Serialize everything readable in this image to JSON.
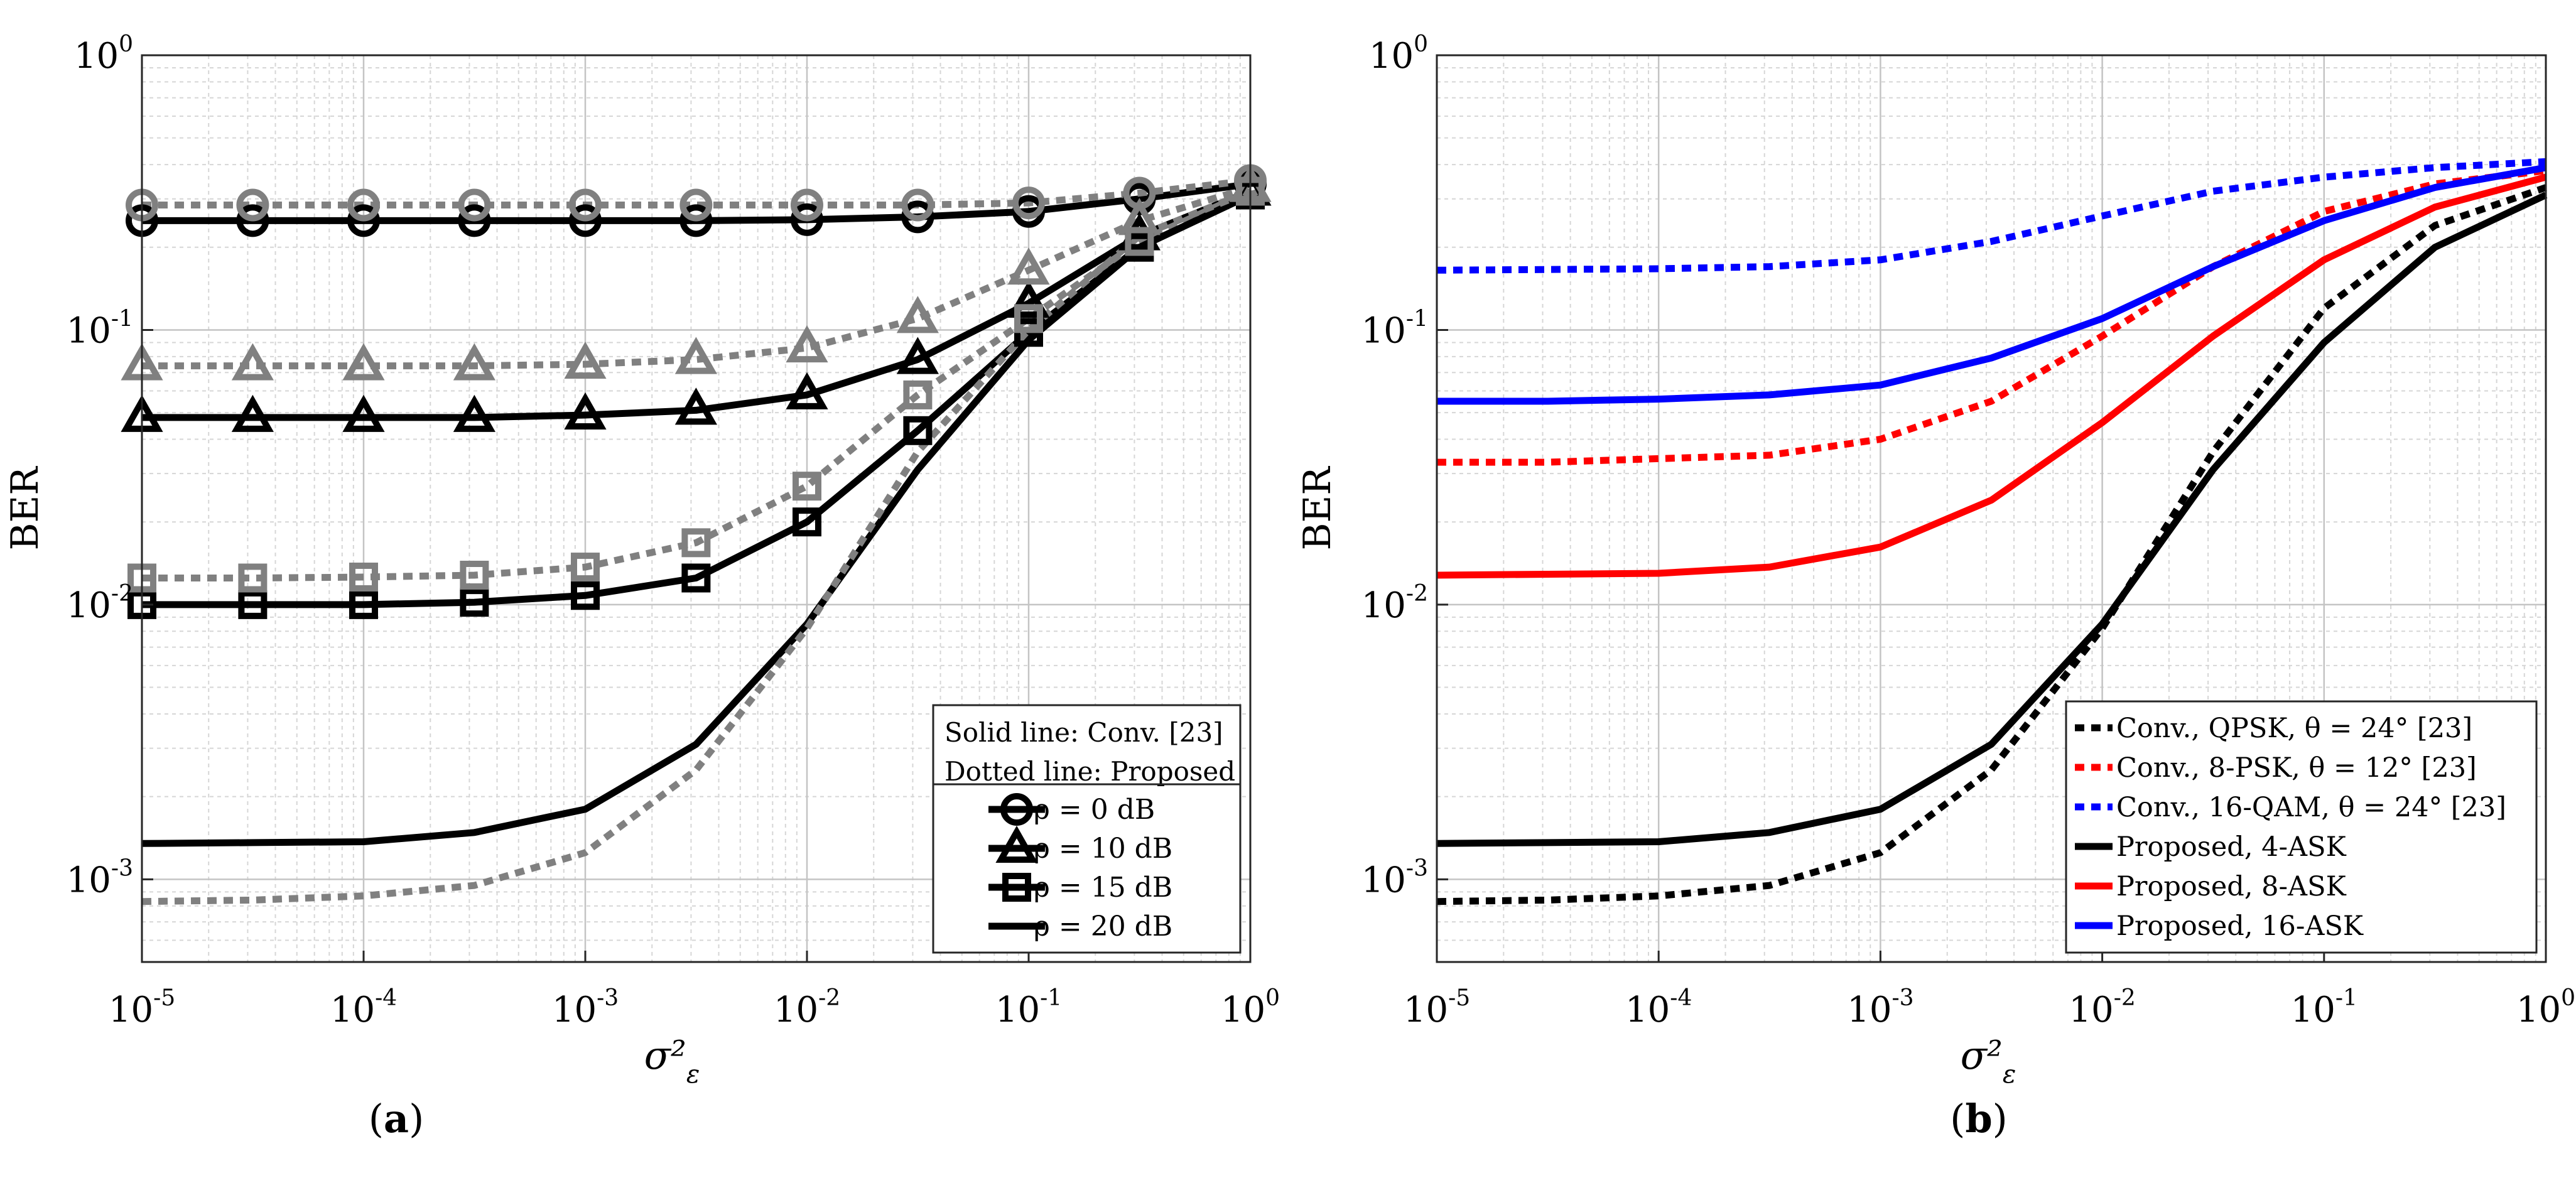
{
  "chart_data": [
    {
      "type": "line",
      "title": "",
      "caption": "a",
      "xlabel": "σ²ε",
      "ylabel": "BER",
      "xscale": "log",
      "yscale": "log",
      "xlim": [
        1e-05,
        1
      ],
      "ylim": [
        0.0005,
        1
      ],
      "grid": true,
      "legend_placement": "bottom-right",
      "x": [
        1e-05,
        3.16e-05,
        0.0001,
        0.000316,
        0.001,
        0.00316,
        0.01,
        0.0316,
        0.1,
        0.316,
        1
      ],
      "x_ticks": [
        {
          "base": "10",
          "exp": "-5",
          "value": 1e-05
        },
        {
          "base": "10",
          "exp": "-4",
          "value": 0.0001
        },
        {
          "base": "10",
          "exp": "-3",
          "value": 0.001
        },
        {
          "base": "10",
          "exp": "-2",
          "value": 0.01
        },
        {
          "base": "10",
          "exp": "-1",
          "value": 0.1
        },
        {
          "base": "10",
          "exp": "0",
          "value": 1
        }
      ],
      "y_ticks": [
        {
          "base": "10",
          "exp": "0",
          "value": 1
        },
        {
          "base": "10",
          "exp": "-1",
          "value": 0.1
        },
        {
          "base": "10",
          "exp": "-2",
          "value": 0.01
        },
        {
          "base": "10",
          "exp": "-3",
          "value": 0.001
        }
      ],
      "legend_header": [
        "Solid line: Conv. [23]",
        "Dotted line: Proposed"
      ],
      "legend": [
        {
          "label": "ρ = 0 dB",
          "marker": "circle"
        },
        {
          "label": "ρ = 10 dB",
          "marker": "triangle"
        },
        {
          "label": "ρ = 15 dB",
          "marker": "square"
        },
        {
          "label": "ρ = 20 dB",
          "marker": "none"
        }
      ],
      "series": [
        {
          "name": "Conv., ρ = 0 dB",
          "style": "solid",
          "color": "#000000",
          "marker": "circle",
          "values": [
            0.25,
            0.25,
            0.25,
            0.25,
            0.25,
            0.25,
            0.252,
            0.258,
            0.27,
            0.3,
            0.34
          ]
        },
        {
          "name": "Proposed, ρ = 0 dB",
          "style": "dotted",
          "color": "#808080",
          "marker": "circle",
          "values": [
            0.285,
            0.285,
            0.285,
            0.285,
            0.285,
            0.285,
            0.285,
            0.285,
            0.29,
            0.315,
            0.35
          ]
        },
        {
          "name": "Conv., ρ = 10 dB",
          "style": "solid",
          "color": "#000000",
          "marker": "triangle",
          "values": [
            0.048,
            0.048,
            0.048,
            0.048,
            0.049,
            0.051,
            0.058,
            0.078,
            0.125,
            0.22,
            0.32
          ]
        },
        {
          "name": "Proposed, ρ = 10 dB",
          "style": "dotted",
          "color": "#808080",
          "marker": "triangle",
          "values": [
            0.074,
            0.074,
            0.074,
            0.074,
            0.075,
            0.078,
            0.086,
            0.11,
            0.165,
            0.25,
            0.33
          ]
        },
        {
          "name": "Conv., ρ = 15 dB",
          "style": "solid",
          "color": "#000000",
          "marker": "square",
          "values": [
            0.01,
            0.01,
            0.01,
            0.0102,
            0.0108,
            0.0125,
            0.02,
            0.043,
            0.098,
            0.2,
            0.31
          ]
        },
        {
          "name": "Proposed, ρ = 15 dB",
          "style": "dotted",
          "color": "#808080",
          "marker": "square",
          "values": [
            0.0125,
            0.0125,
            0.0126,
            0.0128,
            0.0137,
            0.0168,
            0.027,
            0.058,
            0.11,
            0.21,
            0.32
          ]
        },
        {
          "name": "Conv., ρ = 20 dB",
          "style": "solid",
          "color": "#000000",
          "marker": "none",
          "values": [
            0.00135,
            0.00136,
            0.00137,
            0.00148,
            0.0018,
            0.0031,
            0.0085,
            0.031,
            0.092,
            0.2,
            0.31
          ]
        },
        {
          "name": "Proposed, ρ = 20 dB",
          "style": "dotted",
          "color": "#808080",
          "marker": "none",
          "values": [
            0.00083,
            0.00084,
            0.00087,
            0.00095,
            0.00125,
            0.0025,
            0.0082,
            0.036,
            0.1,
            0.22,
            0.32
          ]
        }
      ]
    },
    {
      "type": "line",
      "title": "",
      "caption": "b",
      "xlabel": "σ²ε",
      "ylabel": "BER",
      "xscale": "log",
      "yscale": "log",
      "xlim": [
        1e-05,
        1
      ],
      "ylim": [
        0.0005,
        1
      ],
      "grid": true,
      "legend_placement": "bottom-right",
      "x": [
        1e-05,
        3.16e-05,
        0.0001,
        0.000316,
        0.001,
        0.00316,
        0.01,
        0.0316,
        0.1,
        0.316,
        1
      ],
      "x_ticks": [
        {
          "base": "10",
          "exp": "-5",
          "value": 1e-05
        },
        {
          "base": "10",
          "exp": "-4",
          "value": 0.0001
        },
        {
          "base": "10",
          "exp": "-3",
          "value": 0.001
        },
        {
          "base": "10",
          "exp": "-2",
          "value": 0.01
        },
        {
          "base": "10",
          "exp": "-1",
          "value": 0.1
        },
        {
          "base": "10",
          "exp": "0",
          "value": 1
        }
      ],
      "y_ticks": [
        {
          "base": "10",
          "exp": "0",
          "value": 1
        },
        {
          "base": "10",
          "exp": "-1",
          "value": 0.1
        },
        {
          "base": "10",
          "exp": "-2",
          "value": 0.01
        },
        {
          "base": "10",
          "exp": "-3",
          "value": 0.001
        }
      ],
      "series": [
        {
          "name": "Conv., QPSK, θ = 24° [23]",
          "style": "dotted",
          "color": "#000000",
          "values": [
            0.00083,
            0.00084,
            0.00087,
            0.00095,
            0.00125,
            0.0025,
            0.0082,
            0.036,
            0.12,
            0.24,
            0.33
          ]
        },
        {
          "name": "Conv., 8-PSK, θ = 12° [23]",
          "style": "dotted",
          "color": "#ff0000",
          "values": [
            0.033,
            0.033,
            0.034,
            0.035,
            0.04,
            0.055,
            0.095,
            0.17,
            0.27,
            0.34,
            0.38
          ]
        },
        {
          "name": "Conv., 16-QAM, θ = 24° [23]",
          "style": "dotted",
          "color": "#0000ff",
          "values": [
            0.165,
            0.166,
            0.167,
            0.17,
            0.18,
            0.21,
            0.26,
            0.32,
            0.36,
            0.39,
            0.41
          ]
        },
        {
          "name": "Proposed, 4-ASK",
          "style": "solid",
          "color": "#000000",
          "values": [
            0.00135,
            0.00136,
            0.00137,
            0.00148,
            0.0018,
            0.0031,
            0.0085,
            0.031,
            0.09,
            0.2,
            0.31
          ]
        },
        {
          "name": "Proposed, 8-ASK",
          "style": "solid",
          "color": "#ff0000",
          "values": [
            0.0128,
            0.0129,
            0.013,
            0.0137,
            0.0162,
            0.024,
            0.046,
            0.095,
            0.18,
            0.28,
            0.36
          ]
        },
        {
          "name": "Proposed, 16-ASK",
          "style": "solid",
          "color": "#0000ff",
          "values": [
            0.055,
            0.055,
            0.056,
            0.058,
            0.063,
            0.079,
            0.11,
            0.17,
            0.25,
            0.33,
            0.39
          ]
        }
      ]
    }
  ]
}
